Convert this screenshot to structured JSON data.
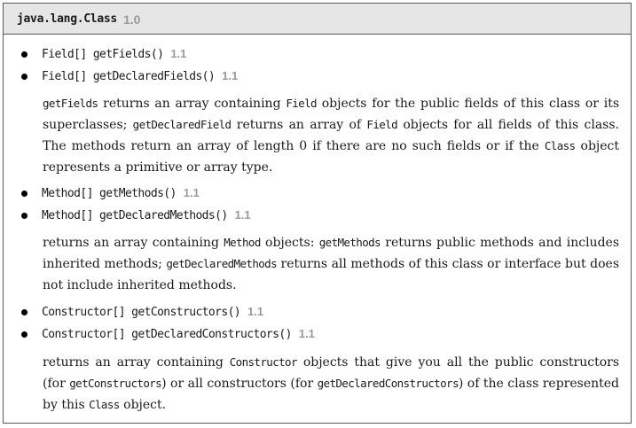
{
  "header": {
    "class_name": "java.lang.Class",
    "version": "1.0"
  },
  "items": [
    {
      "signature": "Field[] getFields()",
      "version": "1.1"
    },
    {
      "signature": "Field[] getDeclaredFields()",
      "version": "1.1"
    },
    {
      "signature": "Method[] getMethods()",
      "version": "1.1"
    },
    {
      "signature": "Method[] getDeclaredMethods()",
      "version": "1.1"
    },
    {
      "signature": "Constructor[] getConstructors()",
      "version": "1.1"
    },
    {
      "signature": "Constructor[] getDeclaredConstructors()",
      "version": "1.1"
    }
  ],
  "descriptions": {
    "fields": [
      {
        "code": "getFields"
      },
      {
        "text": " returns an array containing "
      },
      {
        "code": "Field"
      },
      {
        "text": " objects for the public fields of this class or its superclasses; "
      },
      {
        "code": "getDeclaredField"
      },
      {
        "text": " returns an array of "
      },
      {
        "code": "Field"
      },
      {
        "text": " objects for all fields of this class. The methods return an array of length 0 if there are no such fields or if the "
      },
      {
        "code": "Class"
      },
      {
        "text": " object represents a primitive or array type."
      }
    ],
    "methods": [
      {
        "text": "returns an array containing "
      },
      {
        "code": "Method"
      },
      {
        "text": " objects: "
      },
      {
        "code": "getMethods"
      },
      {
        "text": " returns public methods and includes inherited methods; "
      },
      {
        "code": "getDeclaredMethods"
      },
      {
        "text": " returns all methods of this class or interface but does not include inherited methods."
      }
    ],
    "constructors": [
      {
        "text": "returns an array containing "
      },
      {
        "code": "Constructor"
      },
      {
        "text": " objects that give you all the public constructors (for "
      },
      {
        "code": "getConstructors"
      },
      {
        "text": ") or all constructors (for "
      },
      {
        "code": "getDeclaredConstructors"
      },
      {
        "text": ") of the class represented by this "
      },
      {
        "code": "Class"
      },
      {
        "text": " object."
      }
    ]
  }
}
